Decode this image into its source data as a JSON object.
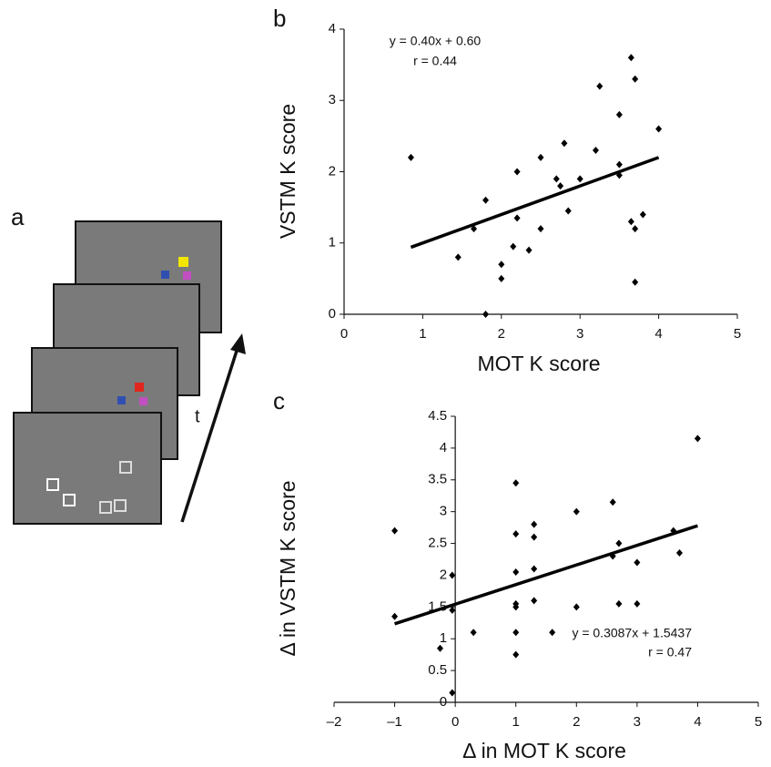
{
  "diagram": {
    "panel_label": "a",
    "time_label": "t"
  },
  "chart_data": [
    {
      "type": "scatter",
      "panel_label": "b",
      "x_label": "MOT K score",
      "y_label": "VSTM K score",
      "annotations": [
        "y = 0.40x + 0.60",
        "r = 0.44"
      ],
      "color": "#000000",
      "x": [
        0.85,
        1.45,
        1.65,
        1.8,
        1.8,
        2.0,
        2.0,
        2.15,
        2.2,
        2.2,
        2.35,
        2.5,
        2.5,
        2.7,
        2.75,
        2.8,
        2.85,
        3.0,
        3.2,
        3.25,
        3.5,
        3.5,
        3.5,
        3.65,
        3.65,
        3.7,
        3.7,
        3.7,
        3.8,
        4.0
      ],
      "values": [
        2.2,
        0.8,
        1.2,
        1.6,
        0.0,
        0.7,
        0.5,
        0.95,
        1.35,
        2.0,
        0.9,
        1.2,
        2.2,
        1.9,
        1.8,
        2.4,
        1.45,
        1.9,
        2.3,
        3.2,
        2.8,
        2.1,
        1.95,
        3.6,
        1.3,
        3.3,
        1.2,
        0.45,
        1.4,
        2.6
      ],
      "fit": {
        "x": [
          0.85,
          4.0
        ],
        "values": [
          0.94,
          2.2
        ]
      },
      "xlim": [
        0,
        5
      ],
      "ylim": [
        0,
        4
      ],
      "xticks": [
        0,
        1,
        2,
        3,
        4,
        5
      ],
      "yticks": [
        0,
        1,
        2,
        3,
        4
      ]
    },
    {
      "type": "scatter",
      "panel_label": "c",
      "x_label": "Δ in MOT K score",
      "y_label": "Δ in VSTM K score",
      "annotations": [
        "y = 0.3087x + 1.5437",
        "r = 0.47"
      ],
      "color": "#000000",
      "x": [
        -1,
        -1,
        -0.25,
        -0.05,
        -0.05,
        -0.05,
        0.3,
        1,
        1,
        1,
        1,
        1,
        1,
        1,
        1.3,
        1.3,
        1.3,
        1.3,
        1.6,
        2,
        2,
        2.6,
        2.6,
        2.7,
        2.7,
        3,
        3,
        3.6,
        3.7,
        4
      ],
      "values": [
        2.7,
        1.35,
        0.85,
        2.0,
        1.45,
        0.15,
        1.1,
        3.45,
        2.65,
        2.05,
        1.55,
        1.5,
        1.1,
        0.75,
        2.8,
        2.6,
        2.1,
        1.6,
        1.1,
        3.0,
        1.5,
        3.15,
        2.3,
        2.5,
        1.55,
        2.2,
        1.55,
        2.7,
        2.35,
        4.15
      ],
      "fit": {
        "x": [
          -1,
          4
        ],
        "values": [
          1.235,
          2.778
        ]
      },
      "xlim": [
        -2,
        5
      ],
      "ylim": [
        0,
        4.5
      ],
      "xticks": [
        {
          "value": -2,
          "label": "–2"
        },
        {
          "value": -1,
          "label": "–1"
        },
        0,
        1,
        2,
        3,
        4,
        5
      ],
      "yticks": [
        0,
        0.5,
        1,
        1.5,
        2,
        2.5,
        3,
        3.5,
        4,
        4.5
      ]
    }
  ]
}
